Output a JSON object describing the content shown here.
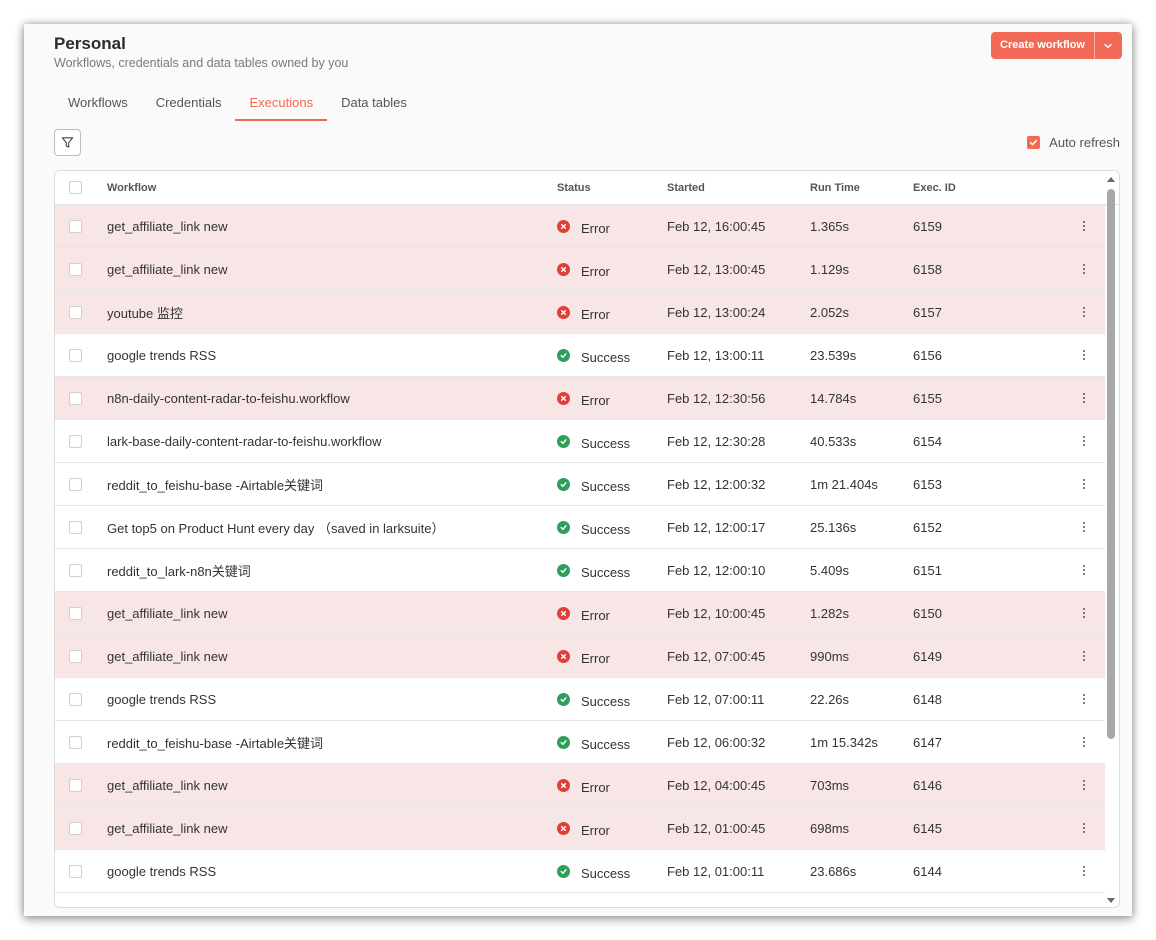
{
  "header": {
    "title": "Personal",
    "subtitle": "Workflows, credentials and data tables owned by you",
    "create_label": "Create workflow"
  },
  "tabs": [
    {
      "label": "Workflows",
      "active": false
    },
    {
      "label": "Credentials",
      "active": false
    },
    {
      "label": "Executions",
      "active": true
    },
    {
      "label": "Data tables",
      "active": false
    }
  ],
  "auto_refresh": {
    "label": "Auto refresh",
    "checked": true
  },
  "table": {
    "columns": [
      "Workflow",
      "Status",
      "Started",
      "Run Time",
      "Exec. ID"
    ],
    "rows": [
      {
        "workflow": "get_affiliate_link new",
        "status": "Error",
        "started": "Feb 12, 16:00:45",
        "runtime": "1.365s",
        "id": "6159"
      },
      {
        "workflow": "get_affiliate_link new",
        "status": "Error",
        "started": "Feb 12, 13:00:45",
        "runtime": "1.129s",
        "id": "6158"
      },
      {
        "workflow": "youtube 监控",
        "status": "Error",
        "started": "Feb 12, 13:00:24",
        "runtime": "2.052s",
        "id": "6157"
      },
      {
        "workflow": "google trends RSS",
        "status": "Success",
        "started": "Feb 12, 13:00:11",
        "runtime": "23.539s",
        "id": "6156"
      },
      {
        "workflow": "n8n-daily-content-radar-to-feishu.workflow",
        "status": "Error",
        "started": "Feb 12, 12:30:56",
        "runtime": "14.784s",
        "id": "6155"
      },
      {
        "workflow": "lark-base-daily-content-radar-to-feishu.workflow",
        "status": "Success",
        "started": "Feb 12, 12:30:28",
        "runtime": "40.533s",
        "id": "6154"
      },
      {
        "workflow": "reddit_to_feishu-base -Airtable关键词",
        "status": "Success",
        "started": "Feb 12, 12:00:32",
        "runtime": "1m 21.404s",
        "id": "6153"
      },
      {
        "workflow": "Get top5 on Product Hunt every day （saved in larksuite）",
        "status": "Success",
        "started": "Feb 12, 12:00:17",
        "runtime": "25.136s",
        "id": "6152"
      },
      {
        "workflow": "reddit_to_lark-n8n关键词",
        "status": "Success",
        "started": "Feb 12, 12:00:10",
        "runtime": "5.409s",
        "id": "6151"
      },
      {
        "workflow": "get_affiliate_link new",
        "status": "Error",
        "started": "Feb 12, 10:00:45",
        "runtime": "1.282s",
        "id": "6150"
      },
      {
        "workflow": "get_affiliate_link new",
        "status": "Error",
        "started": "Feb 12, 07:00:45",
        "runtime": "990ms",
        "id": "6149"
      },
      {
        "workflow": "google trends RSS",
        "status": "Success",
        "started": "Feb 12, 07:00:11",
        "runtime": "22.26s",
        "id": "6148"
      },
      {
        "workflow": "reddit_to_feishu-base -Airtable关键词",
        "status": "Success",
        "started": "Feb 12, 06:00:32",
        "runtime": "1m 15.342s",
        "id": "6147"
      },
      {
        "workflow": "get_affiliate_link new",
        "status": "Error",
        "started": "Feb 12, 04:00:45",
        "runtime": "703ms",
        "id": "6146"
      },
      {
        "workflow": "get_affiliate_link new",
        "status": "Error",
        "started": "Feb 12, 01:00:45",
        "runtime": "698ms",
        "id": "6145"
      },
      {
        "workflow": "google trends RSS",
        "status": "Success",
        "started": "Feb 12, 01:00:11",
        "runtime": "23.686s",
        "id": "6144"
      }
    ]
  },
  "colors": {
    "accent": "#f26a56",
    "error_row": "#f8e6e6",
    "error_icon": "#e0403a",
    "success_icon": "#2f9e5a"
  },
  "icons": {
    "filter": "filter-icon",
    "error": "error-x-icon",
    "success": "success-check-icon",
    "row_menu": "vertical-dots-icon",
    "dropdown": "chevron-down-icon"
  }
}
